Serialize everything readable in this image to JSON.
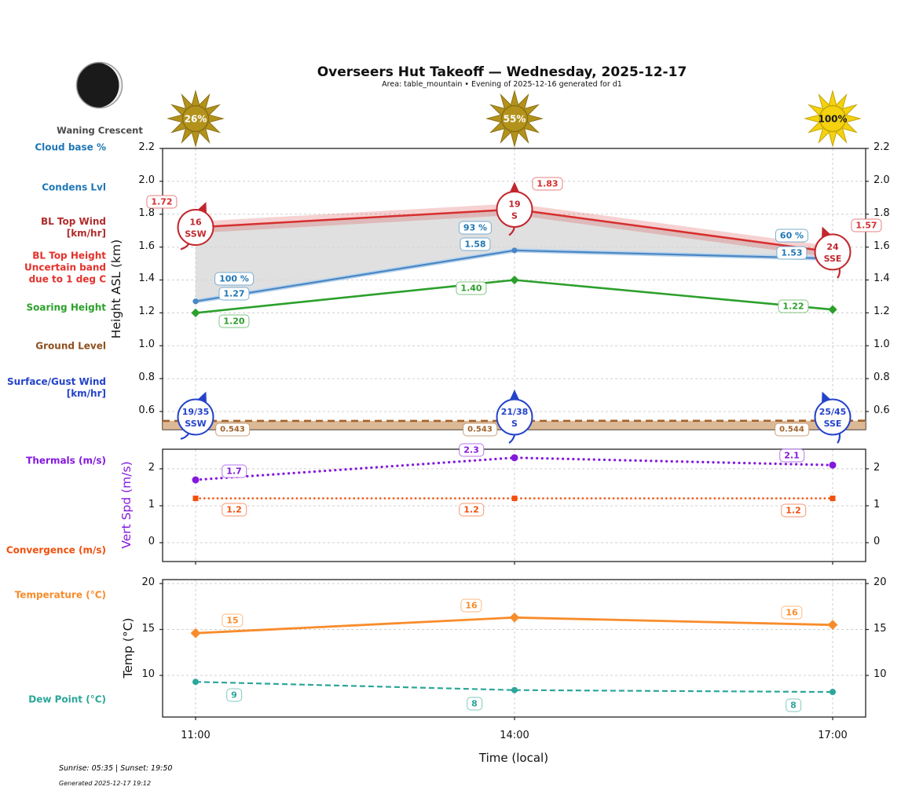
{
  "header": {
    "title": "Overseers Hut Takeoff — Wednesday, 2025-12-17",
    "subtitle": "Area: table_mountain • Evening of 2025-12-16 generated for d1"
  },
  "moon": {
    "phase_label": "Waning Crescent"
  },
  "sun_flyability": [
    {
      "time": "11:00",
      "percent": "26%",
      "bright": false
    },
    {
      "time": "14:00",
      "percent": "55%",
      "bright": false
    },
    {
      "time": "17:00",
      "percent": "100%",
      "bright": true
    }
  ],
  "colors": {
    "sun_dim": "#b3921b",
    "sun_dim_stroke": "#8a7013",
    "sun_bright": "#f4d20d",
    "sun_bright_stroke": "#c2a50a",
    "grid": "#cfcfcf",
    "axis": "#222222",
    "cloud_blue": "#1f77b4",
    "condens_blue": "#4a86c5",
    "bl_top_red": "#d62f2f",
    "soaring_green": "#2ca02c",
    "ground_brown": "#a2622b",
    "surface_wind_blue": "#2443c9",
    "thermals_purple": "#8319dd",
    "convergence_orange": "#f1500e",
    "temperature_orange": "#f88c2b",
    "dew_teal": "#2ba69a"
  },
  "sidebar": {
    "items": [
      {
        "key": "cloud-base",
        "label": "Cloud base %",
        "color": "#1f77b4"
      },
      {
        "key": "condens-lvl",
        "label": "Condens Lvl",
        "color": "#1f77b4"
      },
      {
        "key": "bl-top-wind",
        "label": "BL Top Wind\n[km/hr]",
        "color": "#b02c2c"
      },
      {
        "key": "bl-top-height",
        "label": "BL Top Height\nUncertain band\ndue to 1 deg C",
        "color": "#e3312b"
      },
      {
        "key": "soaring-height",
        "label": "Soaring Height",
        "color": "#2ca02c"
      },
      {
        "key": "ground-level",
        "label": "Ground Level",
        "color": "#8d4f1f"
      },
      {
        "key": "surface-gust-wind",
        "label": "Surface/Gust Wind\n[km/hr]",
        "color": "#2443c9"
      },
      {
        "key": "thermals",
        "label": "Thermals (m/s)",
        "color": "#8319dd"
      },
      {
        "key": "convergence",
        "label": "Convergence (m/s)",
        "color": "#f1500e"
      },
      {
        "key": "temperature",
        "label": "Temperature (°C)",
        "color": "#f88c2b"
      },
      {
        "key": "dew-point",
        "label": "Dew Point (°C)",
        "color": "#2ba69a"
      }
    ]
  },
  "x_axis": {
    "label": "Time (local)",
    "ticks": [
      "11:00",
      "14:00",
      "17:00"
    ]
  },
  "chart_data": [
    {
      "id": "height",
      "type": "line",
      "ylabel": "Height ASL (km)",
      "x": [
        "11:00",
        "14:00",
        "17:00"
      ],
      "ytick_labels": [
        "0.6",
        "0.8",
        "1.0",
        "1.2",
        "1.4",
        "1.6",
        "1.8",
        "2.0",
        "2.2"
      ],
      "ylim": [
        0.49,
        2.2
      ],
      "series": [
        {
          "key": "bl_top",
          "name": "BL Top Height",
          "color": "#d62f2f",
          "line": "solid",
          "uncertainty_band": 0.035,
          "values": [
            1.72,
            1.83,
            1.57
          ],
          "point_labels": [
            "1.72",
            "1.83",
            "1.57"
          ]
        },
        {
          "key": "condens",
          "name": "Condensation Level",
          "color": "#4a86c5",
          "label_color": "#1f77b4",
          "line": "solid",
          "marker": "circle",
          "values": [
            1.27,
            1.58,
            1.53
          ],
          "point_labels": [
            "1.27",
            "1.58",
            "1.53"
          ]
        },
        {
          "key": "cloud_pct",
          "name": "Cloud base %",
          "color": "#1f77b4",
          "values": null,
          "point_labels": [
            "100 %",
            "93 %",
            "60 %"
          ]
        },
        {
          "key": "soaring",
          "name": "Soaring Height",
          "color": "#2ca02c",
          "line": "solid",
          "marker": "diamond",
          "values": [
            1.2,
            1.4,
            1.22
          ],
          "point_labels": [
            "1.20",
            "1.40",
            "1.22"
          ]
        },
        {
          "key": "ground",
          "name": "Ground Level",
          "color": "#a2622b",
          "line": "dashed",
          "fill_below": true,
          "values": [
            0.543,
            0.543,
            0.544
          ],
          "point_labels": [
            "0.543",
            "0.543",
            "0.544"
          ]
        }
      ],
      "fill_between": {
        "upper": "bl_top",
        "lower": "condens",
        "color": "#d6d6d6"
      },
      "wind_badges": [
        {
          "key": "bl_top_wind",
          "name": "BL Top Wind [km/hr]",
          "color": "#c1272d",
          "attach": "bl_top",
          "points": [
            {
              "speed": "16",
              "dir": "SSW"
            },
            {
              "speed": "19",
              "dir": "S"
            },
            {
              "speed": "24",
              "dir": "SSE"
            }
          ]
        },
        {
          "key": "surface_wind",
          "name": "Surface/Gust Wind [km/hr]",
          "color": "#2443c9",
          "attach": "ground",
          "points": [
            {
              "speed": "19/35",
              "dir": "SSW"
            },
            {
              "speed": "21/38",
              "dir": "S"
            },
            {
              "speed": "25/45",
              "dir": "SSE"
            }
          ]
        }
      ]
    },
    {
      "id": "vert_spd",
      "type": "line",
      "ylabel": "Vert Spd (m/s)",
      "x": [
        "11:00",
        "14:00",
        "17:00"
      ],
      "ytick_labels": [
        "0",
        "1",
        "2"
      ],
      "ylim": [
        -0.51,
        2.53
      ],
      "series": [
        {
          "key": "thermals",
          "name": "Thermals (m/s)",
          "color": "#8319dd",
          "line": "dotted",
          "marker": "circle",
          "values": [
            1.7,
            2.3,
            2.1
          ],
          "point_labels": [
            "1.7",
            "2.3",
            "2.1"
          ]
        },
        {
          "key": "convergence",
          "name": "Convergence (m/s)",
          "color": "#f1500e",
          "line": "dotted",
          "marker": "square",
          "values": [
            1.2,
            1.2,
            1.2
          ],
          "point_labels": [
            "1.2",
            "1.2",
            "1.2"
          ]
        }
      ]
    },
    {
      "id": "temp",
      "type": "line",
      "ylabel": "Temp (°C)",
      "x": [
        "11:00",
        "14:00",
        "17:00"
      ],
      "ytick_labels": [
        "10",
        "15",
        "20"
      ],
      "ylim": [
        5.47,
        20.43
      ],
      "series": [
        {
          "key": "temperature",
          "name": "Temperature (°C)",
          "color": "#f88c2b",
          "line": "solid",
          "marker": "diamond",
          "values": [
            14.6,
            16.3,
            15.5
          ],
          "point_labels": [
            "15",
            "16",
            "16"
          ]
        },
        {
          "key": "dew_point",
          "name": "Dew Point (°C)",
          "color": "#2ba69a",
          "line": "dashed",
          "marker": "circle",
          "values": [
            9.3,
            8.4,
            8.2
          ],
          "point_labels": [
            "9",
            "8",
            "8"
          ]
        }
      ]
    }
  ],
  "footer": {
    "sun_times": "Sunrise: 05:35 | Sunset: 19:50",
    "generated": "Generated 2025-12-17 19:12"
  }
}
